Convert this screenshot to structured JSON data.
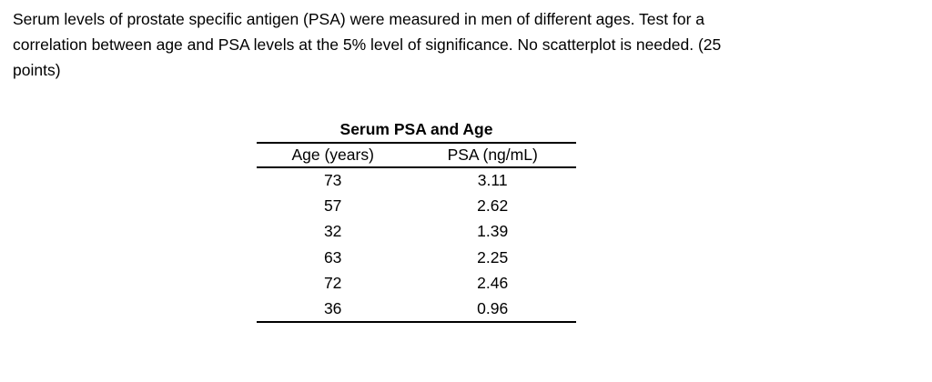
{
  "page": {
    "background_color": "#ffffff",
    "text_color": "#000000"
  },
  "problem": {
    "lines": [
      "Serum levels of prostate specific antigen (PSA) were measured in men of different ages. Test for a",
      "correlation between age and PSA levels at the 5% level of significance. No scatterplot is needed. (25",
      "points)"
    ]
  },
  "table": {
    "title": "Serum PSA and Age",
    "columns": [
      "Age (years)",
      "PSA (ng/mL)"
    ],
    "rows": [
      [
        "73",
        "3.11"
      ],
      [
        "57",
        "2.62"
      ],
      [
        "32",
        "1.39"
      ],
      [
        "63",
        "2.25"
      ],
      [
        "72",
        "2.46"
      ],
      [
        "36",
        "0.96"
      ]
    ]
  }
}
